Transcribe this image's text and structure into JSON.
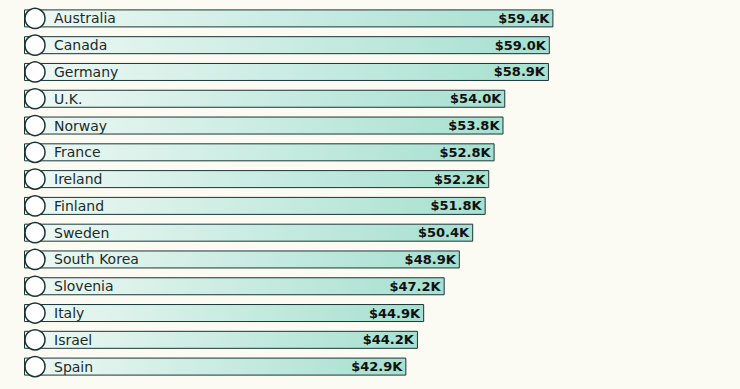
{
  "chart_data": {
    "type": "bar",
    "orientation": "horizontal",
    "categories": [
      "Australia",
      "Canada",
      "Germany",
      "U.K.",
      "Norway",
      "France",
      "Ireland",
      "Finland",
      "Sweden",
      "South Korea",
      "Slovenia",
      "Italy",
      "Israel",
      "Spain"
    ],
    "values": [
      59.4,
      59.0,
      58.9,
      54.0,
      53.8,
      52.8,
      52.2,
      51.8,
      50.4,
      48.9,
      47.2,
      44.9,
      44.2,
      42.9
    ],
    "value_labels": [
      "$59.4K",
      "$59.0K",
      "$58.9K",
      "$54.0K",
      "$53.8K",
      "$52.8K",
      "$52.2K",
      "$51.8K",
      "$50.4K",
      "$48.9K",
      "$47.2K",
      "$44.9K",
      "$44.2K",
      "$42.9K"
    ],
    "color": "#a6e0d0",
    "xlim": [
      0,
      80
    ],
    "data_labels": true,
    "tick_labels": false,
    "grid": false
  }
}
